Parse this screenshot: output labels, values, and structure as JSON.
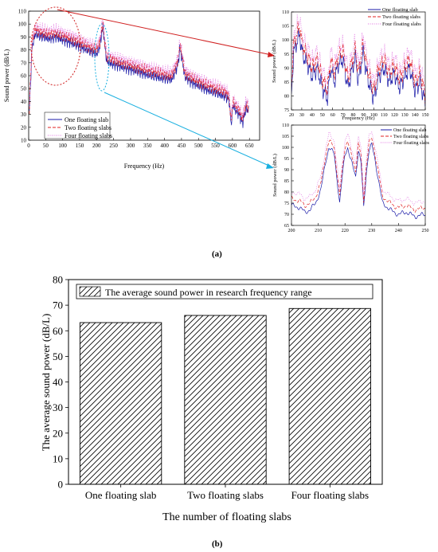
{
  "panel_a_label": "(a)",
  "panel_b_label": "(b)",
  "chart_data": [
    {
      "id": "a_main",
      "type": "line",
      "xlabel": "Frequency (Hz)",
      "ylabel": "Sound power (dB/L)",
      "xlim": [
        0,
        680
      ],
      "ylim": [
        10,
        110
      ],
      "xticks": [
        0,
        50,
        100,
        150,
        200,
        250,
        300,
        350,
        400,
        450,
        500,
        550,
        600,
        650
      ],
      "yticks": [
        10,
        20,
        30,
        40,
        50,
        60,
        70,
        80,
        90,
        100,
        110
      ],
      "legend": "bottom-left",
      "series": [
        {
          "name": "One floating slab",
          "color": "#1a1aa8",
          "dash": "solid",
          "offset": -3
        },
        {
          "name": "Two floating slabs",
          "color": "#e02020",
          "dash": "4,2",
          "offset": 0
        },
        {
          "name": "Four floating slabs",
          "color": "#e070e0",
          "dash": "1,1.5",
          "offset": 3
        }
      ],
      "envelope": {
        "x": [
          2,
          6,
          10,
          14,
          20,
          30,
          45,
          60,
          80,
          100,
          120,
          150,
          180,
          200,
          210,
          215,
          218,
          220,
          222,
          225,
          230,
          240,
          260,
          300,
          350,
          400,
          420,
          430,
          440,
          445,
          450,
          460,
          480,
          520,
          560,
          580,
          590,
          596,
          602,
          610,
          620,
          630,
          640,
          648
        ],
        "y": [
          35,
          60,
          85,
          90,
          96,
          94,
          93,
          92,
          93,
          91,
          89,
          86,
          82,
          80,
          86,
          96,
          100,
          98,
          92,
          84,
          74,
          73,
          71,
          68,
          64,
          61,
          60,
          65,
          72,
          84,
          78,
          62,
          58,
          53,
          49,
          47,
          44,
          25,
          40,
          36,
          33,
          26,
          38,
          35
        ]
      }
    },
    {
      "id": "a_zoom1",
      "type": "line",
      "xlabel": "Frequency (Hz)",
      "ylabel": "Sound power (dB/L)",
      "xlim": [
        20,
        150
      ],
      "ylim": [
        75,
        110
      ],
      "xticks": [
        20,
        30,
        40,
        50,
        60,
        70,
        80,
        90,
        100,
        110,
        120,
        130,
        140,
        150
      ],
      "yticks": [
        75,
        80,
        85,
        90,
        95,
        100,
        105,
        110
      ],
      "legend": "top-right",
      "series": [
        {
          "name": "One floating slab",
          "color": "#1a1aa8",
          "dash": "solid",
          "offset": -3
        },
        {
          "name": "Two floating slabs",
          "color": "#e02020",
          "dash": "4,2",
          "offset": 0
        },
        {
          "name": "Four floating slabs",
          "color": "#e070e0",
          "dash": "1,1.5",
          "offset": 3
        }
      ],
      "envelope": {
        "x": [
          20,
          22,
          25,
          28,
          30,
          33,
          36,
          40,
          45,
          50,
          55,
          58,
          62,
          65,
          70,
          75,
          78,
          82,
          85,
          88,
          90,
          92,
          95,
          100,
          105,
          110,
          115,
          120,
          125,
          130,
          135,
          140,
          145,
          150
        ],
        "y": [
          84,
          98,
          102,
          105,
          99,
          96,
          94,
          90,
          93,
          86,
          82,
          93,
          88,
          94,
          96,
          86,
          91,
          97,
          88,
          95,
          99,
          93,
          88,
          82,
          90,
          93,
          88,
          91,
          86,
          90,
          93,
          85,
          88,
          80
        ]
      }
    },
    {
      "id": "a_zoom2",
      "type": "line",
      "xlabel": "",
      "ylabel": "Sound power (dB/L)",
      "xlim": [
        200,
        250
      ],
      "ylim": [
        65,
        110
      ],
      "xticks": [
        200,
        210,
        220,
        230,
        240,
        250
      ],
      "yticks": [
        65,
        70,
        75,
        80,
        85,
        90,
        95,
        100,
        105,
        110
      ],
      "legend": "top-right",
      "series": [
        {
          "name": "One floating slab",
          "color": "#1a1aa8",
          "dash": "solid",
          "offset": -3
        },
        {
          "name": "Two floating slabs",
          "color": "#e02020",
          "dash": "4,2",
          "offset": 0
        },
        {
          "name": "Four floating slabs",
          "color": "#e070e0",
          "dash": "1,1.5",
          "offset": 3
        }
      ],
      "envelope": {
        "x": [
          200,
          203,
          205,
          207,
          209,
          211,
          213,
          214,
          216,
          218,
          219,
          220,
          221,
          222,
          224,
          225,
          226,
          227,
          228,
          229,
          230,
          231,
          232,
          234,
          236,
          238,
          240,
          243,
          246,
          250
        ],
        "y": [
          77,
          76,
          74,
          75,
          78,
          84,
          98,
          103,
          100,
          78,
          90,
          100,
          103,
          98,
          90,
          102,
          96,
          76,
          92,
          102,
          104,
          99,
          92,
          78,
          76,
          74,
          73,
          74,
          72,
          73
        ]
      }
    },
    {
      "id": "b",
      "type": "bar",
      "xlabel": "The number of floating slabs",
      "ylabel": "The average sound power (dB/L)",
      "categories": [
        "One floating slab",
        "Two floating slabs",
        "Four floating slabs"
      ],
      "values": [
        63.2,
        66.0,
        68.7
      ],
      "ylim": [
        0,
        80
      ],
      "yticks": [
        0,
        10,
        20,
        30,
        40,
        50,
        60,
        70,
        80
      ],
      "legend": "top",
      "series": [
        {
          "name": "The average sound power in research frequency range",
          "values": [
            63.2,
            66.0,
            68.7
          ]
        }
      ]
    }
  ]
}
